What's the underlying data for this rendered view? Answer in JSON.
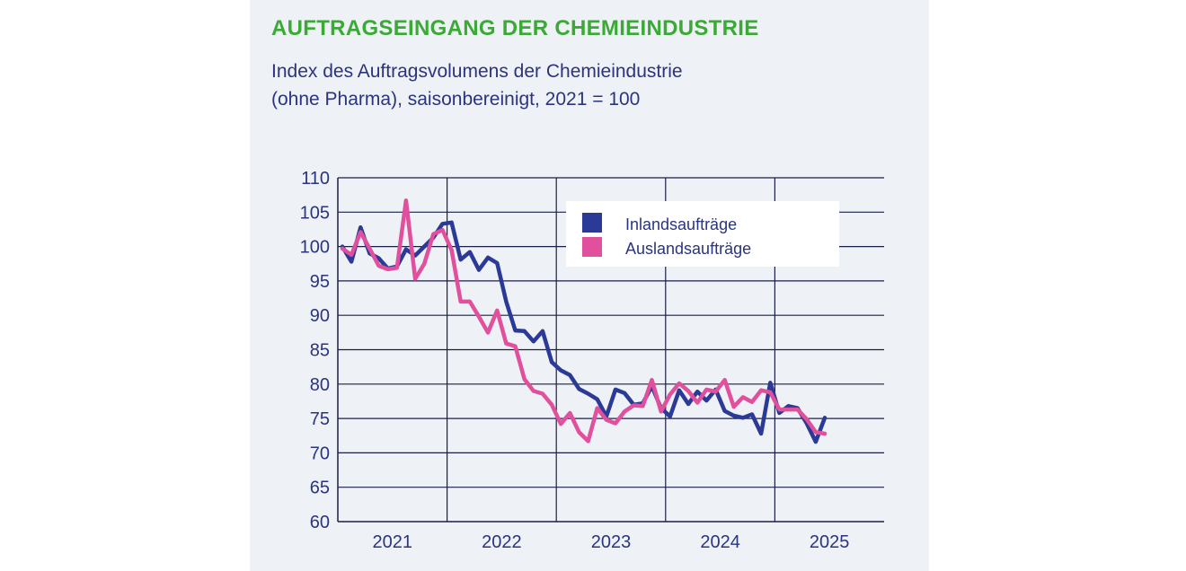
{
  "chart_data": {
    "type": "line",
    "title": "AUFTRAGSEINGANG DER CHEMIEINDUSTRIE",
    "subtitle": [
      "Index des Auftragsvolumens der Chemieindustrie",
      "(ohne Pharma), saisonbereinigt, 2021 = 100"
    ],
    "xlabel": "",
    "ylabel": "",
    "ylim": [
      60,
      110
    ],
    "yticks": [
      60,
      65,
      70,
      75,
      80,
      85,
      90,
      95,
      100,
      105,
      110
    ],
    "xticks": [
      "2021",
      "2022",
      "2023",
      "2024",
      "2025"
    ],
    "grid": true,
    "legend_position": "top-right",
    "x_start": "2021-01",
    "x_end": "2025-05",
    "colors": {
      "title": "#3aa935",
      "text": "#2a3480",
      "grid": "#1a1f4a"
    },
    "series": [
      {
        "name": "Inlandsaufträge",
        "color": "#2a3a96",
        "values": [
          100,
          97.8,
          102.8,
          99.0,
          98.3,
          96.8,
          97.1,
          99.6,
          98.7,
          100.0,
          101.3,
          103.3,
          103.5,
          98.1,
          99.2,
          96.6,
          98.4,
          97.6,
          92.0,
          87.8,
          87.7,
          86.2,
          87.7,
          83.2,
          82.0,
          81.3,
          79.3,
          78.6,
          77.8,
          75.3,
          79.2,
          78.7,
          77.0,
          77.2,
          79.7,
          76.5,
          75.3,
          79.1,
          77.1,
          78.9,
          77.6,
          79.2,
          76.1,
          75.4,
          75.1,
          75.6,
          72.8,
          80.2,
          75.8,
          76.8,
          76.5,
          74.3,
          71.6,
          75.1
        ]
      },
      {
        "name": "Auslandsaufträge",
        "color": "#e0509c",
        "values": [
          99.7,
          98.8,
          102.1,
          99.7,
          97.2,
          96.7,
          96.9,
          106.7,
          95.3,
          97.5,
          101.8,
          102.4,
          99.5,
          92.0,
          92.0,
          89.8,
          87.5,
          90.7,
          85.9,
          85.5,
          80.7,
          79.0,
          78.6,
          77.0,
          74.2,
          75.8,
          73.0,
          71.7,
          76.5,
          74.8,
          74.3,
          76.0,
          76.9,
          76.8,
          80.6,
          76.0,
          78.5,
          80.1,
          79.0,
          77.3,
          79.2,
          78.9,
          80.6,
          76.7,
          78.1,
          77.4,
          79.1,
          78.8,
          76.3,
          76.3,
          76.3,
          74.9,
          73.0,
          72.8
        ]
      }
    ]
  }
}
